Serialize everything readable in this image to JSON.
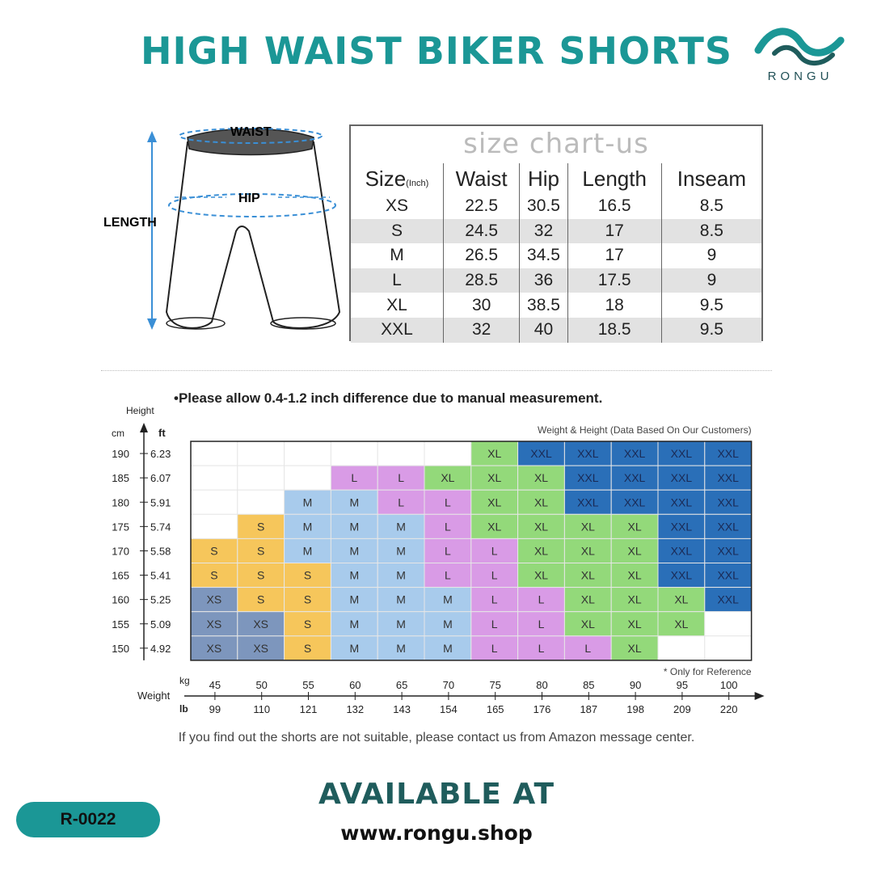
{
  "title": "HIGH WAIST BIKER SHORTS",
  "logo": {
    "name": "RONGU",
    "icon": "wave-logo-icon",
    "color": "#1b9796"
  },
  "figure": {
    "waist_label": "WAIST",
    "hip_label": "HIP",
    "length_label": "LENGTH"
  },
  "size_chart": {
    "title": "size chart-us",
    "headers": [
      "Size",
      "Waist",
      "Hip",
      "Length",
      "Inseam"
    ],
    "size_unit": "(Inch)",
    "rows": [
      [
        "XS",
        "22.5",
        "30.5",
        "16.5",
        "8.5"
      ],
      [
        "S",
        "24.5",
        "32",
        "17",
        "8.5"
      ],
      [
        "M",
        "26.5",
        "34.5",
        "17",
        "9"
      ],
      [
        "L",
        "28.5",
        "36",
        "17.5",
        "9"
      ],
      [
        "XL",
        "30",
        "38.5",
        "18",
        "9.5"
      ],
      [
        "XXL",
        "32",
        "40",
        "18.5",
        "9.5"
      ]
    ]
  },
  "note": "•Please allow 0.4-1.2 inch difference due to manual measurement.",
  "chart_data": {
    "type": "heatmap",
    "title": "Weight & Height  (Data Based On Our Customers)",
    "ylabel": "Height",
    "y_units": [
      "cm",
      "ft"
    ],
    "y_cm": [
      "190",
      "185",
      "180",
      "175",
      "170",
      "165",
      "160",
      "155",
      "150"
    ],
    "y_ft": [
      "6.23",
      "6.07",
      "5.91",
      "5.74",
      "5.58",
      "5.41",
      "5.25",
      "5.09",
      "4.92"
    ],
    "xlabel": "Weight",
    "x_units": [
      "kg",
      "lb"
    ],
    "x_kg": [
      "45",
      "50",
      "55",
      "60",
      "65",
      "70",
      "75",
      "80",
      "85",
      "90",
      "95",
      "100"
    ],
    "x_lb": [
      "99",
      "110",
      "121",
      "132",
      "143",
      "154",
      "165",
      "176",
      "187",
      "198",
      "209",
      "220"
    ],
    "grid": [
      [
        "",
        "",
        "",
        "",
        "",
        "",
        "XL",
        "XXL",
        "XXL",
        "XXL",
        "XXL",
        "XXL"
      ],
      [
        "",
        "",
        "",
        "L",
        "L",
        "XL",
        "XL",
        "XL",
        "XXL",
        "XXL",
        "XXL",
        "XXL"
      ],
      [
        "",
        "",
        "M",
        "M",
        "L",
        "L",
        "XL",
        "XL",
        "XXL",
        "XXL",
        "XXL",
        "XXL"
      ],
      [
        "",
        "S",
        "M",
        "M",
        "M",
        "L",
        "XL",
        "XL",
        "XL",
        "XL",
        "XXL",
        "XXL"
      ],
      [
        "S",
        "S",
        "M",
        "M",
        "M",
        "L",
        "L",
        "XL",
        "XL",
        "XL",
        "XXL",
        "XXL"
      ],
      [
        "S",
        "S",
        "S",
        "M",
        "M",
        "L",
        "L",
        "XL",
        "XL",
        "XL",
        "XXL",
        "XXL"
      ],
      [
        "XS",
        "S",
        "S",
        "M",
        "M",
        "M",
        "L",
        "L",
        "XL",
        "XL",
        "XL",
        "XXL"
      ],
      [
        "XS",
        "XS",
        "S",
        "M",
        "M",
        "M",
        "L",
        "L",
        "XL",
        "XL",
        "XL",
        ""
      ],
      [
        "XS",
        "XS",
        "S",
        "M",
        "M",
        "M",
        "L",
        "L",
        "L",
        "XL",
        "",
        ""
      ]
    ],
    "colors": {
      "XS": "#7d96bd",
      "S": "#f6c65b",
      "M": "#a8cbec",
      "L": "#d99be6",
      "XL": "#93d97a",
      "XXL": "#2a6fb8"
    },
    "reference_note": "* Only for Reference"
  },
  "footer_note": "If you find out the shorts are not suitable, please contact us from Amazon message center.",
  "available": "AVAILABLE AT",
  "website": "www.rongu.shop",
  "code": "R-0022"
}
